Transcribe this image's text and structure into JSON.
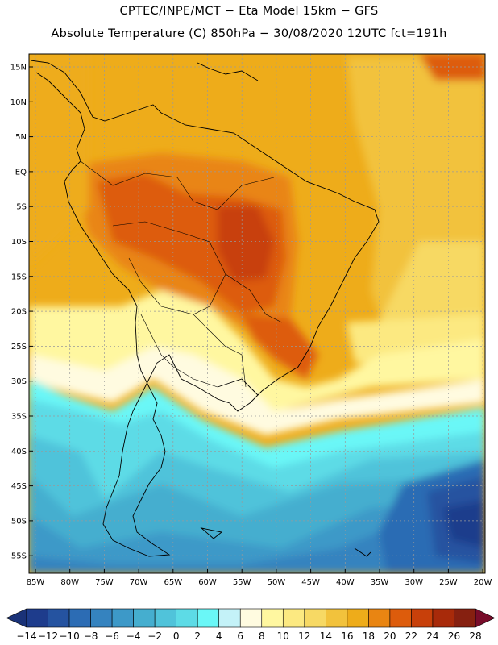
{
  "header": {
    "line1": "CPTEC/INPE/MCT −  Eta Model 15km − GFS",
    "line2": "Absolute Temperature (C) 850hPa − 30/08/2020 12UTC fct=191h"
  },
  "map": {
    "lat_labels": [
      "15N",
      "10N",
      "5N",
      "EQ",
      "5S",
      "10S",
      "15S",
      "20S",
      "25S",
      "30S",
      "35S",
      "40S",
      "45S",
      "50S",
      "55S"
    ],
    "lon_labels": [
      "85W",
      "80W",
      "75W",
      "70W",
      "65W",
      "60W",
      "55W",
      "50W",
      "45W",
      "40W",
      "35W",
      "30W",
      "25W",
      "20W"
    ]
  },
  "colorbar": {
    "labels": [
      "−14",
      "−12",
      "−10",
      "−8",
      "−6",
      "−4",
      "−2",
      "0",
      "2",
      "4",
      "6",
      "8",
      "10",
      "12",
      "14",
      "16",
      "18",
      "20",
      "22",
      "24",
      "26",
      "28"
    ],
    "colors": [
      "#1e3c8c",
      "#2553a0",
      "#2c6cb4",
      "#3583bf",
      "#3d99c8",
      "#45aecf",
      "#50c3da",
      "#5ddbe6",
      "#6af7f7",
      "#c4f2f8",
      "#fffbe0",
      "#fff7a0",
      "#fce981",
      "#f7d964",
      "#f2c23c",
      "#eeac1a",
      "#e98512",
      "#dd5c0c",
      "#c8400a",
      "#a82a0a",
      "#862010"
    ],
    "left_arrow_color": "#1a3278",
    "right_arrow_color": "#780c2a"
  }
}
